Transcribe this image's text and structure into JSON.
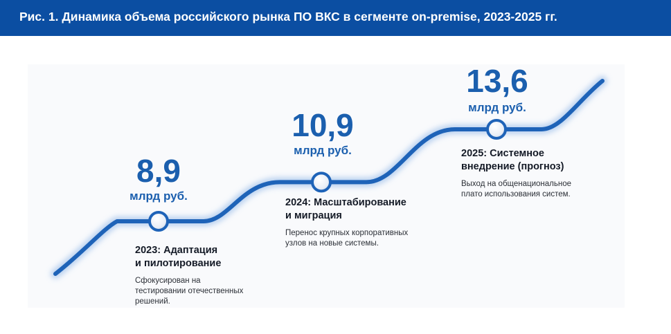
{
  "header": {
    "title": "Рис. 1. Динамика объема  российского рынка ПО ВКС в сегменте on-premise, 2023-2025 гг."
  },
  "colors": {
    "header_bg": "#0b4ea2",
    "line": "#1e63b8",
    "value_text": "#1b5fae"
  },
  "chart_data": {
    "type": "line",
    "title": "Рис. 1. Динамика объема  российского рынка ПО ВКС в сегменте on-premise, 2023-2025 гг.",
    "x": [
      "2023",
      "2024",
      "2025"
    ],
    "series": [
      {
        "values": [
          8.9,
          10.9,
          13.6
        ]
      }
    ],
    "points": [
      {
        "value_label": "8,9",
        "unit": "млрд руб.",
        "phase": "2023: Адаптация\nи пилотирование",
        "description": "Сфокусирован на\nтестировании отечественных\nрешений."
      },
      {
        "value_label": "10,9",
        "unit": "млрд руб.",
        "phase": "2024: Масштабирование\nи миграция",
        "description": "Перенос крупных корпоративных\nузлов на новые системы."
      },
      {
        "value_label": "13,6",
        "unit": "млрд руб.",
        "phase": "2025: Системное\nвнедрение (прогноз)",
        "description": "Выход на общенациональное\nплато использования систем."
      }
    ],
    "grid": false,
    "legend": "none"
  }
}
